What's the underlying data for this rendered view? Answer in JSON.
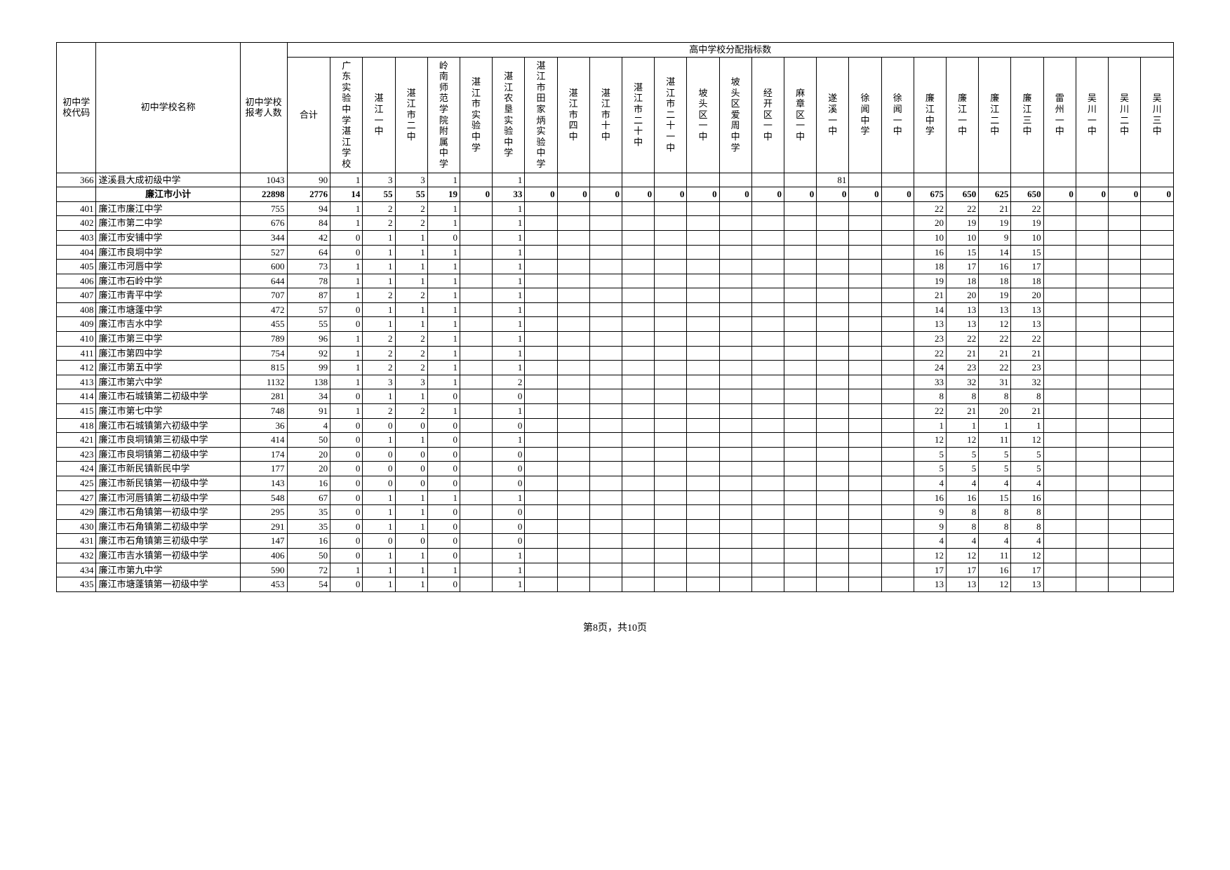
{
  "header": {
    "group_top": "高中学校分配指标数",
    "cols_fixed": [
      "初中学校代码",
      "初中学校名称",
      "初中学校报考人数",
      "合计"
    ],
    "cols_hs": [
      "广东实验中学湛江学校",
      "湛江一中",
      "湛江市二中",
      "岭南师范学院附属中学",
      "湛江市实验中学",
      "湛江农垦实验中学",
      "湛江市田家炳实验中学",
      "湛江市四中",
      "湛江市十中",
      "湛江市二十中",
      "湛江市二十一中",
      "坡头区一中",
      "坡头区爱周中学",
      "经开区一中",
      "麻章区一中",
      "遂溪一中",
      "徐闻中学",
      "徐闻一中",
      "廉江中学",
      "廉江一中",
      "廉江二中",
      "廉江三中",
      "雷州一中",
      "吴川一中",
      "吴川二中",
      "吴川三中"
    ]
  },
  "rows": [
    {
      "code": "366",
      "name": "遂溪县大成初级中学",
      "pop": "1043",
      "tot": "90",
      "v": [
        "1",
        "3",
        "3",
        "1",
        "",
        "1",
        "",
        "",
        "",
        "",
        "",
        "",
        "",
        "",
        "",
        "81",
        "",
        "",
        "",
        "",
        "",
        "",
        "",
        "",
        "",
        ""
      ]
    },
    {
      "bold": true,
      "code": "",
      "name": "廉江市小计",
      "pop": "22898",
      "tot": "2776",
      "v": [
        "14",
        "55",
        "55",
        "19",
        "0",
        "33",
        "0",
        "0",
        "0",
        "0",
        "0",
        "0",
        "0",
        "0",
        "0",
        "0",
        "0",
        "0",
        "675",
        "650",
        "625",
        "650",
        "0",
        "0",
        "0",
        "0"
      ]
    },
    {
      "code": "401",
      "name": "廉江市廉江中学",
      "pop": "755",
      "tot": "94",
      "v": [
        "1",
        "2",
        "2",
        "1",
        "",
        "1",
        "",
        "",
        "",
        "",
        "",
        "",
        "",
        "",
        "",
        "",
        "",
        "",
        "22",
        "22",
        "21",
        "22",
        "",
        "",
        "",
        ""
      ]
    },
    {
      "code": "402",
      "name": "廉江市第二中学",
      "pop": "676",
      "tot": "84",
      "v": [
        "1",
        "2",
        "2",
        "1",
        "",
        "1",
        "",
        "",
        "",
        "",
        "",
        "",
        "",
        "",
        "",
        "",
        "",
        "",
        "20",
        "19",
        "19",
        "19",
        "",
        "",
        "",
        ""
      ]
    },
    {
      "code": "403",
      "name": "廉江市安铺中学",
      "pop": "344",
      "tot": "42",
      "v": [
        "0",
        "1",
        "1",
        "0",
        "",
        "1",
        "",
        "",
        "",
        "",
        "",
        "",
        "",
        "",
        "",
        "",
        "",
        "",
        "10",
        "10",
        "9",
        "10",
        "",
        "",
        "",
        ""
      ]
    },
    {
      "code": "404",
      "name": "廉江市良垌中学",
      "pop": "527",
      "tot": "64",
      "v": [
        "0",
        "1",
        "1",
        "1",
        "",
        "1",
        "",
        "",
        "",
        "",
        "",
        "",
        "",
        "",
        "",
        "",
        "",
        "",
        "16",
        "15",
        "14",
        "15",
        "",
        "",
        "",
        ""
      ]
    },
    {
      "code": "405",
      "name": "廉江市河唇中学",
      "pop": "600",
      "tot": "73",
      "v": [
        "1",
        "1",
        "1",
        "1",
        "",
        "1",
        "",
        "",
        "",
        "",
        "",
        "",
        "",
        "",
        "",
        "",
        "",
        "",
        "18",
        "17",
        "16",
        "17",
        "",
        "",
        "",
        ""
      ]
    },
    {
      "code": "406",
      "name": "廉江市石岭中学",
      "pop": "644",
      "tot": "78",
      "v": [
        "1",
        "1",
        "1",
        "1",
        "",
        "1",
        "",
        "",
        "",
        "",
        "",
        "",
        "",
        "",
        "",
        "",
        "",
        "",
        "19",
        "18",
        "18",
        "18",
        "",
        "",
        "",
        ""
      ]
    },
    {
      "code": "407",
      "name": "廉江市青平中学",
      "pop": "707",
      "tot": "87",
      "v": [
        "1",
        "2",
        "2",
        "1",
        "",
        "1",
        "",
        "",
        "",
        "",
        "",
        "",
        "",
        "",
        "",
        "",
        "",
        "",
        "21",
        "20",
        "19",
        "20",
        "",
        "",
        "",
        ""
      ]
    },
    {
      "code": "408",
      "name": "廉江市塘蓬中学",
      "pop": "472",
      "tot": "57",
      "v": [
        "0",
        "1",
        "1",
        "1",
        "",
        "1",
        "",
        "",
        "",
        "",
        "",
        "",
        "",
        "",
        "",
        "",
        "",
        "",
        "14",
        "13",
        "13",
        "13",
        "",
        "",
        "",
        ""
      ]
    },
    {
      "code": "409",
      "name": "廉江市吉水中学",
      "pop": "455",
      "tot": "55",
      "v": [
        "0",
        "1",
        "1",
        "1",
        "",
        "1",
        "",
        "",
        "",
        "",
        "",
        "",
        "",
        "",
        "",
        "",
        "",
        "",
        "13",
        "13",
        "12",
        "13",
        "",
        "",
        "",
        ""
      ]
    },
    {
      "code": "410",
      "name": "廉江市第三中学",
      "pop": "789",
      "tot": "96",
      "v": [
        "1",
        "2",
        "2",
        "1",
        "",
        "1",
        "",
        "",
        "",
        "",
        "",
        "",
        "",
        "",
        "",
        "",
        "",
        "",
        "23",
        "22",
        "22",
        "22",
        "",
        "",
        "",
        ""
      ]
    },
    {
      "code": "411",
      "name": "廉江市第四中学",
      "pop": "754",
      "tot": "92",
      "v": [
        "1",
        "2",
        "2",
        "1",
        "",
        "1",
        "",
        "",
        "",
        "",
        "",
        "",
        "",
        "",
        "",
        "",
        "",
        "",
        "22",
        "21",
        "21",
        "21",
        "",
        "",
        "",
        ""
      ]
    },
    {
      "code": "412",
      "name": "廉江市第五中学",
      "pop": "815",
      "tot": "99",
      "v": [
        "1",
        "2",
        "2",
        "1",
        "",
        "1",
        "",
        "",
        "",
        "",
        "",
        "",
        "",
        "",
        "",
        "",
        "",
        "",
        "24",
        "23",
        "22",
        "23",
        "",
        "",
        "",
        ""
      ]
    },
    {
      "code": "413",
      "name": "廉江市第六中学",
      "pop": "1132",
      "tot": "138",
      "v": [
        "1",
        "3",
        "3",
        "1",
        "",
        "2",
        "",
        "",
        "",
        "",
        "",
        "",
        "",
        "",
        "",
        "",
        "",
        "",
        "33",
        "32",
        "31",
        "32",
        "",
        "",
        "",
        ""
      ]
    },
    {
      "code": "414",
      "name": "廉江市石城镇第二初级中学",
      "pop": "281",
      "tot": "34",
      "v": [
        "0",
        "1",
        "1",
        "0",
        "",
        "0",
        "",
        "",
        "",
        "",
        "",
        "",
        "",
        "",
        "",
        "",
        "",
        "",
        "8",
        "8",
        "8",
        "8",
        "",
        "",
        "",
        ""
      ]
    },
    {
      "code": "415",
      "name": "廉江市第七中学",
      "pop": "748",
      "tot": "91",
      "v": [
        "1",
        "2",
        "2",
        "1",
        "",
        "1",
        "",
        "",
        "",
        "",
        "",
        "",
        "",
        "",
        "",
        "",
        "",
        "",
        "22",
        "21",
        "20",
        "21",
        "",
        "",
        "",
        ""
      ]
    },
    {
      "code": "418",
      "name": "廉江市石城镇第六初级中学",
      "pop": "36",
      "tot": "4",
      "v": [
        "0",
        "0",
        "0",
        "0",
        "",
        "0",
        "",
        "",
        "",
        "",
        "",
        "",
        "",
        "",
        "",
        "",
        "",
        "",
        "1",
        "1",
        "1",
        "1",
        "",
        "",
        "",
        ""
      ]
    },
    {
      "code": "421",
      "name": "廉江市良垌镇第三初级中学",
      "pop": "414",
      "tot": "50",
      "v": [
        "0",
        "1",
        "1",
        "0",
        "",
        "1",
        "",
        "",
        "",
        "",
        "",
        "",
        "",
        "",
        "",
        "",
        "",
        "",
        "12",
        "12",
        "11",
        "12",
        "",
        "",
        "",
        ""
      ]
    },
    {
      "code": "423",
      "name": "廉江市良垌镇第二初级中学",
      "pop": "174",
      "tot": "20",
      "v": [
        "0",
        "0",
        "0",
        "0",
        "",
        "0",
        "",
        "",
        "",
        "",
        "",
        "",
        "",
        "",
        "",
        "",
        "",
        "",
        "5",
        "5",
        "5",
        "5",
        "",
        "",
        "",
        ""
      ]
    },
    {
      "code": "424",
      "name": "廉江市新民镇新民中学",
      "pop": "177",
      "tot": "20",
      "v": [
        "0",
        "0",
        "0",
        "0",
        "",
        "0",
        "",
        "",
        "",
        "",
        "",
        "",
        "",
        "",
        "",
        "",
        "",
        "",
        "5",
        "5",
        "5",
        "5",
        "",
        "",
        "",
        ""
      ]
    },
    {
      "code": "425",
      "name": "廉江市新民镇第一初级中学",
      "pop": "143",
      "tot": "16",
      "v": [
        "0",
        "0",
        "0",
        "0",
        "",
        "0",
        "",
        "",
        "",
        "",
        "",
        "",
        "",
        "",
        "",
        "",
        "",
        "",
        "4",
        "4",
        "4",
        "4",
        "",
        "",
        "",
        ""
      ]
    },
    {
      "code": "427",
      "name": "廉江市河唇镇第二初级中学",
      "pop": "548",
      "tot": "67",
      "v": [
        "0",
        "1",
        "1",
        "1",
        "",
        "1",
        "",
        "",
        "",
        "",
        "",
        "",
        "",
        "",
        "",
        "",
        "",
        "",
        "16",
        "16",
        "15",
        "16",
        "",
        "",
        "",
        ""
      ]
    },
    {
      "code": "429",
      "name": "廉江市石角镇第一初级中学",
      "pop": "295",
      "tot": "35",
      "v": [
        "0",
        "1",
        "1",
        "0",
        "",
        "0",
        "",
        "",
        "",
        "",
        "",
        "",
        "",
        "",
        "",
        "",
        "",
        "",
        "9",
        "8",
        "8",
        "8",
        "",
        "",
        "",
        ""
      ]
    },
    {
      "code": "430",
      "name": "廉江市石角镇第二初级中学",
      "pop": "291",
      "tot": "35",
      "v": [
        "0",
        "1",
        "1",
        "0",
        "",
        "0",
        "",
        "",
        "",
        "",
        "",
        "",
        "",
        "",
        "",
        "",
        "",
        "",
        "9",
        "8",
        "8",
        "8",
        "",
        "",
        "",
        ""
      ]
    },
    {
      "code": "431",
      "name": "廉江市石角镇第三初级中学",
      "pop": "147",
      "tot": "16",
      "v": [
        "0",
        "0",
        "0",
        "0",
        "",
        "0",
        "",
        "",
        "",
        "",
        "",
        "",
        "",
        "",
        "",
        "",
        "",
        "",
        "4",
        "4",
        "4",
        "4",
        "",
        "",
        "",
        ""
      ]
    },
    {
      "code": "432",
      "name": "廉江市吉水镇第一初级中学",
      "pop": "406",
      "tot": "50",
      "v": [
        "0",
        "1",
        "1",
        "0",
        "",
        "1",
        "",
        "",
        "",
        "",
        "",
        "",
        "",
        "",
        "",
        "",
        "",
        "",
        "12",
        "12",
        "11",
        "12",
        "",
        "",
        "",
        ""
      ]
    },
    {
      "code": "434",
      "name": "廉江市第九中学",
      "pop": "590",
      "tot": "72",
      "v": [
        "1",
        "1",
        "1",
        "1",
        "",
        "1",
        "",
        "",
        "",
        "",
        "",
        "",
        "",
        "",
        "",
        "",
        "",
        "",
        "17",
        "17",
        "16",
        "17",
        "",
        "",
        "",
        ""
      ]
    },
    {
      "code": "435",
      "name": "廉江市塘蓬镇第一初级中学",
      "pop": "453",
      "tot": "54",
      "v": [
        "0",
        "1",
        "1",
        "0",
        "",
        "1",
        "",
        "",
        "",
        "",
        "",
        "",
        "",
        "",
        "",
        "",
        "",
        "",
        "13",
        "13",
        "12",
        "13",
        "",
        "",
        "",
        ""
      ]
    }
  ],
  "footer": "第8页，共10页"
}
